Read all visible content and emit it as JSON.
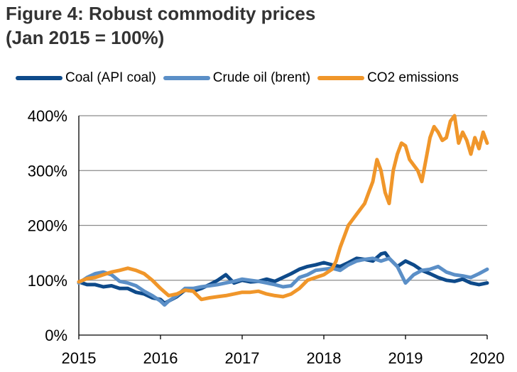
{
  "title_line1": "Figure 4: Robust commodity prices",
  "title_line2": "(Jan 2015 = 100%)",
  "chart_data": {
    "type": "line",
    "title": "Figure 4: Robust commodity prices (Jan 2015 = 100%)",
    "xlabel": "",
    "ylabel": "",
    "x_ticks": [
      "2015",
      "2016",
      "2017",
      "2018",
      "2019",
      "2020"
    ],
    "y_ticks": [
      "0%",
      "100%",
      "200%",
      "300%",
      "400%"
    ],
    "xlim": [
      2015,
      2020
    ],
    "ylim": [
      0,
      400
    ],
    "grid": "horizontal",
    "legend_position": "top",
    "series": [
      {
        "name": "Coal (API coal)",
        "color": "#0e4a8a",
        "x": [
          2015.0,
          2015.1,
          2015.2,
          2015.3,
          2015.4,
          2015.5,
          2015.6,
          2015.7,
          2015.8,
          2015.9,
          2016.0,
          2016.05,
          2016.1,
          2016.2,
          2016.3,
          2016.4,
          2016.5,
          2016.6,
          2016.7,
          2016.8,
          2016.9,
          2017.0,
          2017.1,
          2017.2,
          2017.3,
          2017.4,
          2017.5,
          2017.6,
          2017.7,
          2017.8,
          2017.9,
          2018.0,
          2018.1,
          2018.2,
          2018.3,
          2018.4,
          2018.5,
          2018.6,
          2018.7,
          2018.75,
          2018.8,
          2018.9,
          2019.0,
          2019.1,
          2019.2,
          2019.3,
          2019.4,
          2019.5,
          2019.6,
          2019.7,
          2019.8,
          2019.9,
          2020.0
        ],
        "values": [
          97,
          92,
          92,
          88,
          90,
          85,
          85,
          78,
          75,
          68,
          65,
          58,
          62,
          70,
          82,
          80,
          85,
          92,
          100,
          110,
          95,
          100,
          97,
          98,
          102,
          98,
          105,
          112,
          120,
          125,
          128,
          132,
          128,
          125,
          132,
          140,
          138,
          135,
          148,
          150,
          140,
          125,
          135,
          128,
          118,
          112,
          105,
          100,
          98,
          102,
          95,
          92,
          95
        ]
      },
      {
        "name": "Crude oil (brent)",
        "color": "#5b8fc7",
        "x": [
          2015.0,
          2015.1,
          2015.2,
          2015.3,
          2015.4,
          2015.5,
          2015.6,
          2015.7,
          2015.8,
          2015.9,
          2016.0,
          2016.05,
          2016.1,
          2016.2,
          2016.3,
          2016.4,
          2016.5,
          2016.6,
          2016.7,
          2016.8,
          2016.9,
          2017.0,
          2017.1,
          2017.2,
          2017.3,
          2017.4,
          2017.5,
          2017.6,
          2017.7,
          2017.8,
          2017.9,
          2018.0,
          2018.1,
          2018.2,
          2018.3,
          2018.4,
          2018.5,
          2018.6,
          2018.7,
          2018.8,
          2018.9,
          2019.0,
          2019.1,
          2019.2,
          2019.3,
          2019.4,
          2019.5,
          2019.6,
          2019.7,
          2019.8,
          2019.9,
          2020.0
        ],
        "values": [
          95,
          105,
          112,
          115,
          110,
          98,
          95,
          90,
          80,
          72,
          62,
          55,
          62,
          72,
          85,
          85,
          88,
          90,
          92,
          95,
          98,
          102,
          100,
          98,
          95,
          92,
          88,
          90,
          105,
          110,
          118,
          120,
          122,
          118,
          128,
          135,
          138,
          140,
          135,
          140,
          125,
          95,
          110,
          118,
          120,
          125,
          115,
          110,
          108,
          105,
          112,
          120
        ]
      },
      {
        "name": "CO2 emissions",
        "color": "#f0962a",
        "x": [
          2015.0,
          2015.1,
          2015.2,
          2015.3,
          2015.4,
          2015.5,
          2015.6,
          2015.7,
          2015.8,
          2015.9,
          2016.0,
          2016.1,
          2016.2,
          2016.3,
          2016.4,
          2016.5,
          2016.6,
          2016.7,
          2016.8,
          2016.9,
          2017.0,
          2017.1,
          2017.2,
          2017.3,
          2017.4,
          2017.5,
          2017.6,
          2017.7,
          2017.8,
          2017.9,
          2018.0,
          2018.05,
          2018.1,
          2018.15,
          2018.2,
          2018.25,
          2018.3,
          2018.35,
          2018.4,
          2018.45,
          2018.5,
          2018.55,
          2018.6,
          2018.65,
          2018.7,
          2018.75,
          2018.8,
          2018.85,
          2018.9,
          2018.95,
          2019.0,
          2019.05,
          2019.1,
          2019.15,
          2019.2,
          2019.25,
          2019.3,
          2019.35,
          2019.4,
          2019.45,
          2019.5,
          2019.55,
          2019.6,
          2019.65,
          2019.7,
          2019.75,
          2019.8,
          2019.85,
          2019.9,
          2019.95,
          2020.0
        ],
        "values": [
          97,
          103,
          105,
          110,
          115,
          118,
          122,
          118,
          112,
          100,
          85,
          72,
          75,
          82,
          80,
          65,
          68,
          70,
          72,
          75,
          78,
          78,
          80,
          75,
          72,
          70,
          75,
          85,
          100,
          105,
          110,
          115,
          120,
          135,
          160,
          180,
          200,
          210,
          220,
          230,
          240,
          260,
          280,
          320,
          300,
          260,
          240,
          300,
          330,
          350,
          345,
          320,
          310,
          300,
          280,
          320,
          360,
          380,
          370,
          355,
          360,
          390,
          400,
          350,
          370,
          355,
          330,
          360,
          340,
          370,
          350
        ]
      }
    ]
  }
}
